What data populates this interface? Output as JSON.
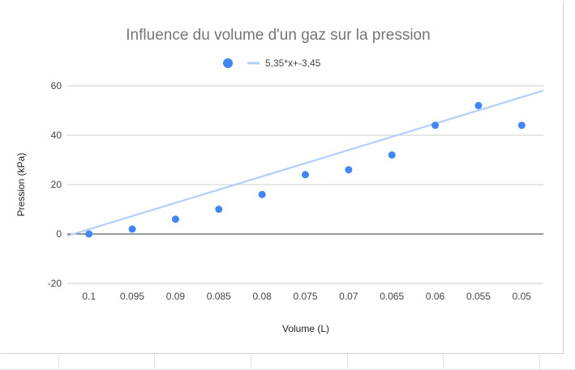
{
  "chart_data": {
    "type": "scatter",
    "title": "Influence du volume d'un gaz sur la pression",
    "xlabel": "Volume (L)",
    "ylabel": "Pression (kPa)",
    "x_tick_labels": [
      "0.1",
      "0.095",
      "0.09",
      "0.085",
      "0.08",
      "0.075",
      "0.07",
      "0.065",
      "0.06",
      "0.055",
      "0.05"
    ],
    "y_tick_labels": [
      "-20",
      "0",
      "20",
      "40",
      "60"
    ],
    "ylim": [
      -20,
      60
    ],
    "x_axis_reversed": true,
    "series": [
      {
        "x": [
          0.1,
          0.095,
          0.09,
          0.085,
          0.08,
          0.075,
          0.07,
          0.065,
          0.06,
          0.055,
          0.05
        ],
        "y": [
          0,
          2,
          6,
          10,
          16,
          24,
          26,
          32,
          44,
          52,
          44
        ],
        "color": "#4285f4"
      }
    ],
    "trendline": {
      "label": "5,35*x+-3,45",
      "slope": 5.35,
      "intercept": -3.45,
      "color": "#b3cefb"
    },
    "legend_position": "top",
    "gridlines": true
  }
}
